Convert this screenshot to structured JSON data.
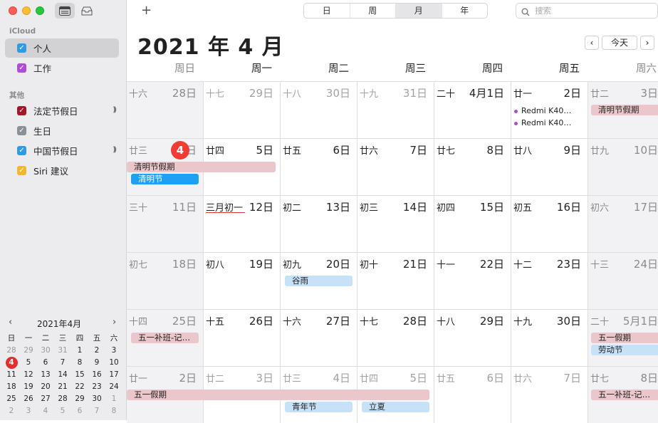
{
  "sidebar": {
    "icloud_head": "iCloud",
    "icloud": [
      {
        "label": "个人",
        "color": "#2f9be3",
        "sel": true
      },
      {
        "label": "工作",
        "color": "#b14cd6",
        "sel": false
      }
    ],
    "other_head": "其他",
    "other": [
      {
        "label": "法定节假日",
        "color": "#a2152b",
        "sig": true
      },
      {
        "label": "生日",
        "color": "#8b8f96",
        "sig": false
      },
      {
        "label": "中国节假日",
        "color": "#2f9be3",
        "sig": true
      },
      {
        "label": "Siri 建议",
        "color": "#f5b62f",
        "sig": false
      }
    ]
  },
  "mini": {
    "title": "2021年4月",
    "prev": "‹",
    "next": "›",
    "headers": [
      "日",
      "一",
      "二",
      "三",
      "四",
      "五",
      "六"
    ],
    "weeks": [
      [
        "28",
        "29",
        "30",
        "31",
        "1",
        "2",
        "3"
      ],
      [
        "4",
        "5",
        "6",
        "7",
        "8",
        "9",
        "10"
      ],
      [
        "11",
        "12",
        "13",
        "14",
        "15",
        "16",
        "17"
      ],
      [
        "18",
        "19",
        "20",
        "21",
        "22",
        "23",
        "24"
      ],
      [
        "25",
        "26",
        "27",
        "28",
        "29",
        "30",
        "1"
      ],
      [
        "2",
        "3",
        "4",
        "5",
        "6",
        "7",
        "8"
      ]
    ],
    "today": "4"
  },
  "toolbar": {
    "add": "+",
    "views": [
      "日",
      "周",
      "月",
      "年"
    ],
    "active_view": "月",
    "search_placeholder": "搜索",
    "today_btn": "今天",
    "prev": "‹",
    "next": "›"
  },
  "month_title": "2021 年 4 月",
  "weekdays": [
    "周日",
    "周一",
    "周二",
    "周三",
    "周四",
    "周五",
    "周六"
  ],
  "weeks": [
    [
      {
        "l": "十六",
        "n": "28日",
        "dim": true
      },
      {
        "l": "十七",
        "n": "29日",
        "dim": true
      },
      {
        "l": "十八",
        "n": "30日",
        "dim": true
      },
      {
        "l": "十九",
        "n": "31日",
        "dim": true
      },
      {
        "l": "二十",
        "n": "4月1日"
      },
      {
        "l": "廿一",
        "n": "2日"
      },
      {
        "l": "廿二",
        "n": "3日"
      }
    ],
    [
      {
        "l": "廿三",
        "n": "日",
        "today": "4"
      },
      {
        "l": "廿四",
        "n": "5日"
      },
      {
        "l": "廿五",
        "n": "6日"
      },
      {
        "l": "廿六",
        "n": "7日"
      },
      {
        "l": "廿七",
        "n": "8日"
      },
      {
        "l": "廿八",
        "n": "9日"
      },
      {
        "l": "廿九",
        "n": "10日"
      }
    ],
    [
      {
        "l": "三十",
        "n": "11日"
      },
      {
        "l": "三月初一",
        "n": "12日"
      },
      {
        "l": "初二",
        "n": "13日"
      },
      {
        "l": "初三",
        "n": "14日"
      },
      {
        "l": "初四",
        "n": "15日"
      },
      {
        "l": "初五",
        "n": "16日"
      },
      {
        "l": "初六",
        "n": "17日"
      }
    ],
    [
      {
        "l": "初七",
        "n": "18日"
      },
      {
        "l": "初八",
        "n": "19日"
      },
      {
        "l": "初九",
        "n": "20日"
      },
      {
        "l": "初十",
        "n": "21日"
      },
      {
        "l": "十一",
        "n": "22日"
      },
      {
        "l": "十二",
        "n": "23日"
      },
      {
        "l": "十三",
        "n": "24日"
      }
    ],
    [
      {
        "l": "十四",
        "n": "25日"
      },
      {
        "l": "十五",
        "n": "26日"
      },
      {
        "l": "十六",
        "n": "27日"
      },
      {
        "l": "十七",
        "n": "28日"
      },
      {
        "l": "十八",
        "n": "29日"
      },
      {
        "l": "十九",
        "n": "30日"
      },
      {
        "l": "二十",
        "n": "5月1日",
        "dim": true
      }
    ],
    [
      {
        "l": "廿一",
        "n": "2日",
        "dim": true
      },
      {
        "l": "廿二",
        "n": "3日",
        "dim": true
      },
      {
        "l": "廿三",
        "n": "4日",
        "dim": true
      },
      {
        "l": "廿四",
        "n": "5日",
        "dim": true
      },
      {
        "l": "廿五",
        "n": "6日",
        "dim": true
      },
      {
        "l": "廿六",
        "n": "7日",
        "dim": true
      },
      {
        "l": "廿七",
        "n": "8日",
        "dim": true
      }
    ]
  ],
  "events": {
    "e1": "Redmi K40…",
    "e2": "Redmi K40…",
    "e3": "清明节假期",
    "e4": "清明节假期",
    "e5": "清明节",
    "e6": "谷雨",
    "e7": "五一补班-记…",
    "e8": "五一假期",
    "e9": "劳动节",
    "e10": "五一假期",
    "e11": "青年节",
    "e12": "立夏",
    "e13": "五一补班-记…"
  },
  "colors": {
    "pink": "#ebc6cb",
    "blue": "#c7e2f7",
    "solid": "#1ea1f2",
    "today": "#ef3c35"
  }
}
